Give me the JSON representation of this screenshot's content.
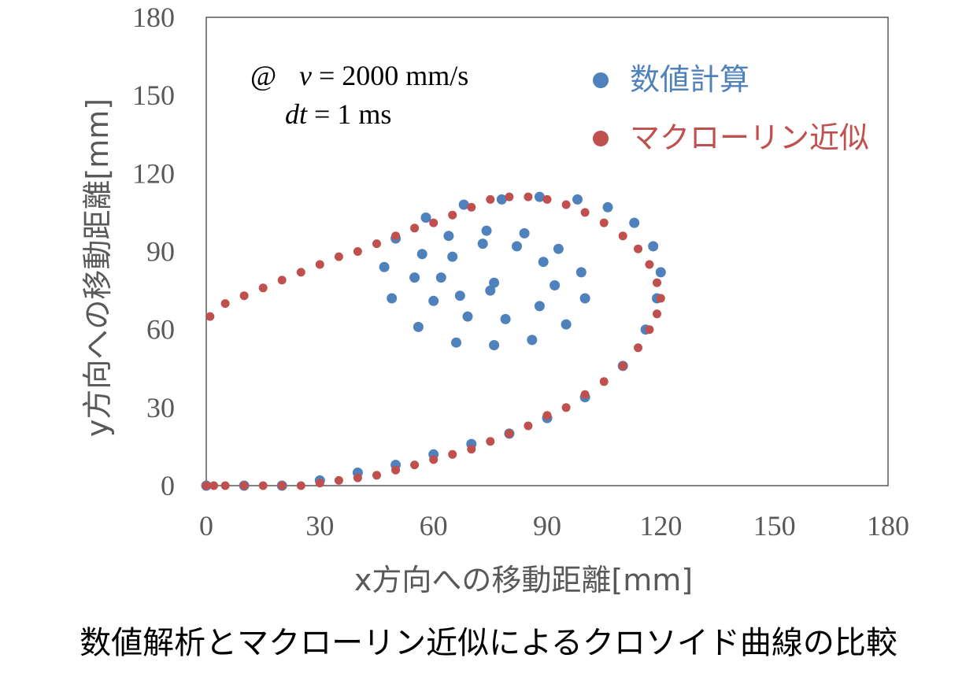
{
  "caption": "数値解析とマクローリン近似によるクロソイド曲線の比較",
  "annotation": {
    "line1_prefix": "@",
    "line1_var": "v",
    "line1_rest": " = 2000 mm/s",
    "line2_var": "dt",
    "line2_rest": " = 1 ms"
  },
  "colors": {
    "numeric": "#4F81BD",
    "maclaurin": "#C0504D",
    "axis": "#595959"
  },
  "chart_data": {
    "type": "scatter",
    "xlabel": "x方向への移動距離[mm]",
    "ylabel": "y方向への移動距離[mm]",
    "xlim": [
      0,
      180
    ],
    "ylim": [
      0,
      180
    ],
    "xticks": [
      0,
      30,
      60,
      90,
      120,
      150,
      180
    ],
    "yticks": [
      0,
      30,
      60,
      90,
      120,
      150,
      180
    ],
    "grid": false,
    "legend_position": "top-right",
    "series": [
      {
        "name": "数値計算",
        "color": "#4F81BD",
        "x": [
          0,
          10,
          20,
          30,
          40,
          50,
          60,
          70,
          80,
          90,
          100,
          110,
          116,
          119,
          120,
          118,
          113,
          106,
          98,
          88,
          78,
          68,
          58,
          50,
          47,
          49,
          56,
          66,
          76,
          86,
          95,
          100,
          99,
          93,
          84,
          74,
          64,
          57,
          55,
          60,
          69,
          79,
          88,
          92,
          89,
          82,
          73,
          65,
          62,
          67,
          75,
          76
        ],
        "y": [
          0,
          0,
          0,
          2,
          5,
          8,
          12,
          16,
          20,
          26,
          34,
          46,
          60,
          72,
          82,
          92,
          101,
          107,
          110,
          111,
          110,
          108,
          103,
          95,
          84,
          72,
          61,
          55,
          54,
          56,
          62,
          72,
          82,
          91,
          97,
          98,
          96,
          89,
          80,
          71,
          65,
          64,
          69,
          77,
          86,
          92,
          93,
          88,
          80,
          73,
          75,
          78
        ]
      },
      {
        "name": "マクローリン近似",
        "color": "#C0504D",
        "x": [
          0,
          2,
          5,
          10,
          15,
          20,
          25,
          30,
          35,
          40,
          45,
          50,
          55,
          60,
          65,
          70,
          75,
          80,
          85,
          90,
          95,
          100,
          105,
          110,
          114,
          117,
          119,
          120,
          119,
          117,
          114,
          110,
          105,
          100,
          95,
          90,
          85,
          80,
          75,
          70,
          65,
          60,
          55,
          50,
          45,
          40,
          35,
          30,
          25,
          20,
          15,
          10,
          5,
          1
        ],
        "y": [
          0,
          0,
          0,
          0,
          0,
          0,
          0,
          1,
          2,
          3,
          4,
          6,
          8,
          10,
          12,
          14,
          17,
          20,
          23,
          27,
          30,
          35,
          40,
          46,
          53,
          60,
          66,
          72,
          78,
          85,
          91,
          96,
          101,
          105,
          108,
          110,
          111,
          111,
          110,
          107,
          104,
          101,
          99,
          96,
          93,
          90,
          88,
          85,
          82,
          79,
          76,
          73,
          70,
          65
        ]
      }
    ]
  }
}
